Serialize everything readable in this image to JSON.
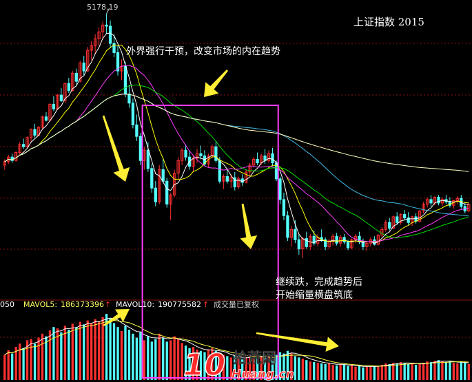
{
  "title": "上证指数 2015",
  "annotations": {
    "top": "外界强行干预，改变市场的内在趋势",
    "bottom_line1": "继续跌，完成趋势后",
    "bottom_line2": "开始缩量横盘筑底"
  },
  "peak_label": "5178.19",
  "volume_strip": {
    "left_value": "050",
    "mavol5_label": "MAVOL5:",
    "mavol5_value": "186373396",
    "mavol10_label": "MAVOL10:",
    "mavol10_value": "190775582",
    "note": "成交量已复权"
  },
  "watermark": {
    "number": "10",
    "brand": "拾荒网",
    "site": "Huang.cn"
  },
  "colors": {
    "up": "#ff3030",
    "down": "#54ffff",
    "ma5": "#ffffff",
    "ma10": "#ffff00",
    "ma20": "#ff40ff",
    "ma30": "#00e000",
    "ma60": "#40b8e0",
    "ma120": "#ffffc0",
    "highlight_box": "#ff3cff",
    "arrow": "#ffee33"
  },
  "chart_data": {
    "type": "candlestick",
    "title": "上证指数 2015",
    "peak_high": 5178.19,
    "price_range": [
      2900,
      5250
    ],
    "candles": [
      [
        3860,
        3910,
        3820,
        3890
      ],
      [
        3890,
        3950,
        3870,
        3930
      ],
      [
        3930,
        3960,
        3880,
        3900
      ],
      [
        3900,
        3980,
        3890,
        3970
      ],
      [
        3970,
        4060,
        3950,
        4040
      ],
      [
        4040,
        4090,
        4000,
        4020
      ],
      [
        4020,
        4110,
        4010,
        4100
      ],
      [
        4100,
        4180,
        4060,
        4170
      ],
      [
        4170,
        4220,
        4100,
        4120
      ],
      [
        4120,
        4200,
        4110,
        4190
      ],
      [
        4190,
        4290,
        4170,
        4280
      ],
      [
        4280,
        4320,
        4240,
        4250
      ],
      [
        4250,
        4400,
        4240,
        4390
      ],
      [
        4390,
        4460,
        4330,
        4350
      ],
      [
        4350,
        4480,
        4340,
        4470
      ],
      [
        4470,
        4530,
        4410,
        4420
      ],
      [
        4420,
        4580,
        4400,
        4570
      ],
      [
        4570,
        4620,
        4490,
        4510
      ],
      [
        4510,
        4680,
        4500,
        4660
      ],
      [
        4660,
        4700,
        4560,
        4590
      ],
      [
        4590,
        4770,
        4580,
        4750
      ],
      [
        4750,
        4810,
        4640,
        4680
      ],
      [
        4680,
        4890,
        4670,
        4860
      ],
      [
        4860,
        4940,
        4770,
        4900
      ],
      [
        4900,
        5000,
        4830,
        4960
      ],
      [
        4960,
        5060,
        4900,
        5020
      ],
      [
        5020,
        5110,
        4960,
        5080
      ],
      [
        5080,
        5178.19,
        5000,
        5070
      ],
      [
        5070,
        5120,
        4880,
        4920
      ],
      [
        4920,
        5000,
        4800,
        4840
      ],
      [
        4840,
        4900,
        4640,
        4680
      ],
      [
        4680,
        4780,
        4600,
        4720
      ],
      [
        4720,
        4760,
        4450,
        4480
      ],
      [
        4480,
        4560,
        4360,
        4400
      ],
      [
        4400,
        4440,
        4180,
        4210
      ],
      [
        4210,
        4300,
        4070,
        4110
      ],
      [
        4110,
        4140,
        3860,
        3900
      ],
      [
        3900,
        4020,
        3820,
        3990
      ],
      [
        3990,
        4060,
        3800,
        3830
      ],
      [
        3830,
        3870,
        3620,
        3660
      ],
      [
        3660,
        3720,
        3500,
        3540
      ],
      [
        3540,
        3860,
        3520,
        3820
      ],
      [
        3820,
        3920,
        3700,
        3720
      ],
      [
        3720,
        3750,
        3490,
        3520
      ],
      [
        3520,
        3620,
        3380,
        3600
      ],
      [
        3600,
        3820,
        3580,
        3790
      ],
      [
        3790,
        3930,
        3740,
        3900
      ],
      [
        3900,
        4010,
        3860,
        3990
      ],
      [
        3990,
        4040,
        3900,
        3930
      ],
      [
        3930,
        3980,
        3820,
        3850
      ],
      [
        3850,
        3950,
        3800,
        3920
      ],
      [
        3920,
        4000,
        3880,
        3960
      ],
      [
        3960,
        4030,
        3910,
        3940
      ],
      [
        3940,
        3990,
        3850,
        3870
      ],
      [
        3870,
        3960,
        3840,
        3940
      ],
      [
        3940,
        4040,
        3920,
        4020
      ],
      [
        4020,
        4070,
        3880,
        3900
      ],
      [
        3900,
        3930,
        3700,
        3720
      ],
      [
        3720,
        3780,
        3650,
        3760
      ],
      [
        3760,
        3830,
        3700,
        3720
      ],
      [
        3720,
        3780,
        3660,
        3750
      ],
      [
        3750,
        3800,
        3640,
        3670
      ],
      [
        3670,
        3760,
        3650,
        3740
      ],
      [
        3740,
        3780,
        3680,
        3710
      ],
      [
        3710,
        3820,
        3700,
        3800
      ],
      [
        3800,
        3880,
        3760,
        3860
      ],
      [
        3860,
        3930,
        3840,
        3910
      ],
      [
        3910,
        3970,
        3860,
        3880
      ],
      [
        3880,
        3960,
        3860,
        3940
      ],
      [
        3940,
        4000,
        3870,
        3900
      ],
      [
        3900,
        3990,
        3880,
        3960
      ],
      [
        3960,
        4010,
        3850,
        3880
      ],
      [
        3880,
        3900,
        3720,
        3740
      ],
      [
        3740,
        3760,
        3520,
        3560
      ],
      [
        3560,
        3620,
        3380,
        3420
      ],
      [
        3420,
        3460,
        3200,
        3230
      ],
      [
        3230,
        3330,
        3150,
        3300
      ],
      [
        3300,
        3380,
        3180,
        3210
      ],
      [
        3210,
        3260,
        3080,
        3130
      ],
      [
        3130,
        3230,
        3050,
        3220
      ],
      [
        3220,
        3280,
        3130,
        3150
      ],
      [
        3150,
        3260,
        3120,
        3240
      ],
      [
        3240,
        3290,
        3160,
        3180
      ],
      [
        3180,
        3260,
        3150,
        3230
      ],
      [
        3230,
        3300,
        3190,
        3210
      ],
      [
        3210,
        3230,
        3120,
        3150
      ],
      [
        3150,
        3220,
        3130,
        3200
      ],
      [
        3200,
        3260,
        3160,
        3240
      ],
      [
        3240,
        3270,
        3160,
        3180
      ],
      [
        3180,
        3250,
        3150,
        3230
      ],
      [
        3230,
        3260,
        3170,
        3190
      ],
      [
        3190,
        3210,
        3120,
        3140
      ],
      [
        3140,
        3220,
        3130,
        3210
      ],
      [
        3210,
        3260,
        3180,
        3240
      ],
      [
        3240,
        3280,
        3170,
        3190
      ],
      [
        3190,
        3220,
        3120,
        3150
      ],
      [
        3150,
        3200,
        3110,
        3180
      ],
      [
        3180,
        3230,
        3150,
        3210
      ],
      [
        3210,
        3240,
        3160,
        3170
      ],
      [
        3170,
        3260,
        3160,
        3250
      ],
      [
        3250,
        3320,
        3230,
        3300
      ],
      [
        3300,
        3380,
        3280,
        3360
      ],
      [
        3360,
        3400,
        3290,
        3310
      ],
      [
        3310,
        3420,
        3300,
        3410
      ],
      [
        3410,
        3450,
        3340,
        3360
      ],
      [
        3360,
        3440,
        3340,
        3430
      ],
      [
        3430,
        3470,
        3380,
        3400
      ],
      [
        3400,
        3450,
        3340,
        3360
      ],
      [
        3360,
        3420,
        3330,
        3410
      ],
      [
        3410,
        3440,
        3350,
        3370
      ],
      [
        3370,
        3470,
        3360,
        3460
      ],
      [
        3460,
        3540,
        3440,
        3520
      ],
      [
        3520,
        3580,
        3490,
        3560
      ],
      [
        3560,
        3600,
        3500,
        3530
      ],
      [
        3530,
        3590,
        3510,
        3580
      ],
      [
        3580,
        3600,
        3510,
        3530
      ],
      [
        3530,
        3580,
        3500,
        3560
      ],
      [
        3560,
        3600,
        3520,
        3540
      ],
      [
        3540,
        3580,
        3490,
        3510
      ],
      [
        3510,
        3560,
        3480,
        3550
      ],
      [
        3550,
        3590,
        3520,
        3570
      ],
      [
        3570,
        3600,
        3480,
        3500
      ],
      [
        3500,
        3540,
        3440,
        3460
      ],
      [
        3460,
        3530,
        3450,
        3520
      ]
    ],
    "volumes": [
      0.38,
      0.45,
      0.4,
      0.5,
      0.55,
      0.48,
      0.6,
      0.62,
      0.55,
      0.64,
      0.7,
      0.66,
      0.75,
      0.8,
      0.78,
      0.72,
      0.82,
      0.76,
      0.85,
      0.8,
      0.88,
      0.84,
      0.9,
      0.86,
      0.92,
      0.88,
      0.95,
      1.0,
      0.93,
      0.86,
      0.8,
      0.74,
      0.82,
      0.76,
      0.7,
      0.64,
      0.72,
      0.6,
      0.66,
      0.58,
      0.62,
      0.7,
      0.64,
      0.58,
      0.6,
      0.66,
      0.62,
      0.56,
      0.52,
      0.48,
      0.5,
      0.46,
      0.44,
      0.42,
      0.46,
      0.48,
      0.44,
      0.4,
      0.38,
      0.36,
      0.34,
      0.36,
      0.33,
      0.31,
      0.34,
      0.36,
      0.38,
      0.34,
      0.36,
      0.33,
      0.35,
      0.32,
      0.38,
      0.42,
      0.4,
      0.44,
      0.4,
      0.36,
      0.34,
      0.32,
      0.3,
      0.28,
      0.27,
      0.26,
      0.25,
      0.24,
      0.25,
      0.23,
      0.22,
      0.24,
      0.23,
      0.21,
      0.22,
      0.2,
      0.21,
      0.19,
      0.2,
      0.22,
      0.21,
      0.2,
      0.23,
      0.25,
      0.24,
      0.26,
      0.25,
      0.27,
      0.26,
      0.24,
      0.25,
      0.23,
      0.24,
      0.26,
      0.28,
      0.27,
      0.29,
      0.3,
      0.28,
      0.27,
      0.29,
      0.26,
      0.25,
      0.27,
      0.26,
      0.24
    ],
    "moving_averages": [
      "MA5",
      "MA10",
      "MA20",
      "MA30",
      "MA60",
      "MA120"
    ],
    "highlight_range": [
      37,
      72
    ]
  }
}
